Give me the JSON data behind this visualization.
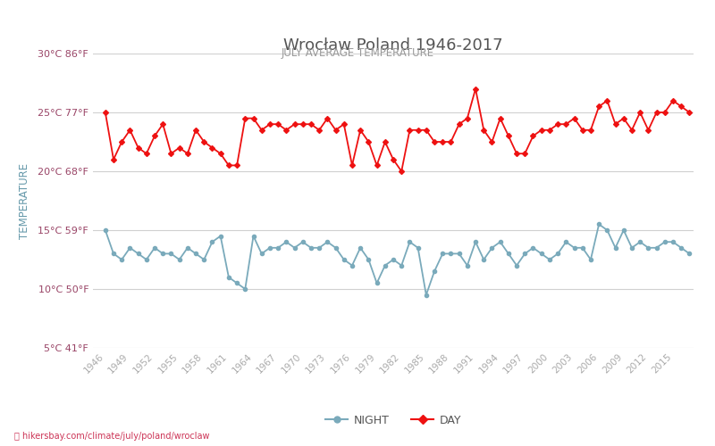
{
  "title": "Wrocław Poland 1946-2017",
  "subtitle": "JULY AVERAGE TEMPERATURE",
  "ylabel": "TEMPERATURE",
  "url_text": "hikersbay.com/climate/july/poland/wroclaw",
  "background_color": "#ffffff",
  "grid_color": "#d0d0d0",
  "title_color": "#555555",
  "subtitle_color": "#999999",
  "ylabel_color": "#6699aa",
  "tick_color": "#aaaaaa",
  "ytick_color": "#994466",
  "day_color": "#ee1111",
  "night_color": "#7aaabb",
  "years": [
    1946,
    1947,
    1948,
    1949,
    1950,
    1951,
    1952,
    1953,
    1954,
    1955,
    1956,
    1957,
    1958,
    1959,
    1960,
    1961,
    1962,
    1963,
    1964,
    1965,
    1966,
    1967,
    1968,
    1969,
    1970,
    1971,
    1972,
    1973,
    1974,
    1975,
    1976,
    1977,
    1978,
    1979,
    1980,
    1981,
    1982,
    1983,
    1984,
    1985,
    1986,
    1987,
    1988,
    1989,
    1990,
    1991,
    1992,
    1993,
    1994,
    1995,
    1996,
    1997,
    1998,
    1999,
    2000,
    2001,
    2002,
    2003,
    2004,
    2005,
    2006,
    2007,
    2008,
    2009,
    2010,
    2011,
    2012,
    2013,
    2014,
    2015,
    2016,
    2017
  ],
  "day_temps": [
    25.0,
    21.0,
    22.5,
    23.5,
    22.0,
    21.5,
    23.0,
    24.0,
    21.5,
    22.0,
    21.5,
    23.5,
    22.5,
    22.0,
    21.5,
    20.5,
    20.5,
    24.5,
    24.5,
    23.5,
    24.0,
    24.0,
    23.5,
    24.0,
    24.0,
    24.0,
    23.5,
    24.5,
    23.5,
    24.0,
    20.5,
    23.5,
    22.5,
    20.5,
    22.5,
    21.0,
    20.0,
    23.5,
    23.5,
    23.5,
    22.5,
    22.5,
    22.5,
    24.0,
    24.5,
    27.0,
    23.5,
    22.5,
    24.5,
    23.0,
    21.5,
    21.5,
    23.0,
    23.5,
    23.5,
    24.0,
    24.0,
    24.5,
    23.5,
    23.5,
    25.5,
    26.0,
    24.0,
    24.5,
    23.5,
    25.0,
    23.5,
    25.0,
    25.0,
    26.0,
    25.5,
    25.0
  ],
  "night_temps": [
    15.0,
    13.0,
    12.5,
    13.5,
    13.0,
    12.5,
    13.5,
    13.0,
    13.0,
    12.5,
    13.5,
    13.0,
    12.5,
    14.0,
    14.5,
    11.0,
    10.5,
    10.0,
    14.5,
    13.0,
    13.5,
    13.5,
    14.0,
    13.5,
    14.0,
    13.5,
    13.5,
    14.0,
    13.5,
    12.5,
    12.0,
    13.5,
    12.5,
    10.5,
    12.0,
    12.5,
    12.0,
    14.0,
    13.5,
    9.5,
    11.5,
    13.0,
    13.0,
    13.0,
    12.0,
    14.0,
    12.5,
    13.5,
    14.0,
    13.0,
    12.0,
    13.0,
    13.5,
    13.0,
    12.5,
    13.0,
    14.0,
    13.5,
    13.5,
    12.5,
    15.5,
    15.0,
    13.5,
    15.0,
    13.5,
    14.0,
    13.5,
    13.5,
    14.0,
    14.0,
    13.5,
    13.0
  ],
  "marker_size": 3.0,
  "line_width": 1.3,
  "ylim": [
    5,
    30
  ],
  "yticks_c": [
    5,
    10,
    15,
    20,
    25,
    30
  ],
  "yticks_f": [
    41,
    50,
    59,
    68,
    77,
    86
  ],
  "legend_night": "NIGHT",
  "legend_day": "DAY",
  "xlim_min": 1944.5,
  "xlim_max": 2017.5
}
